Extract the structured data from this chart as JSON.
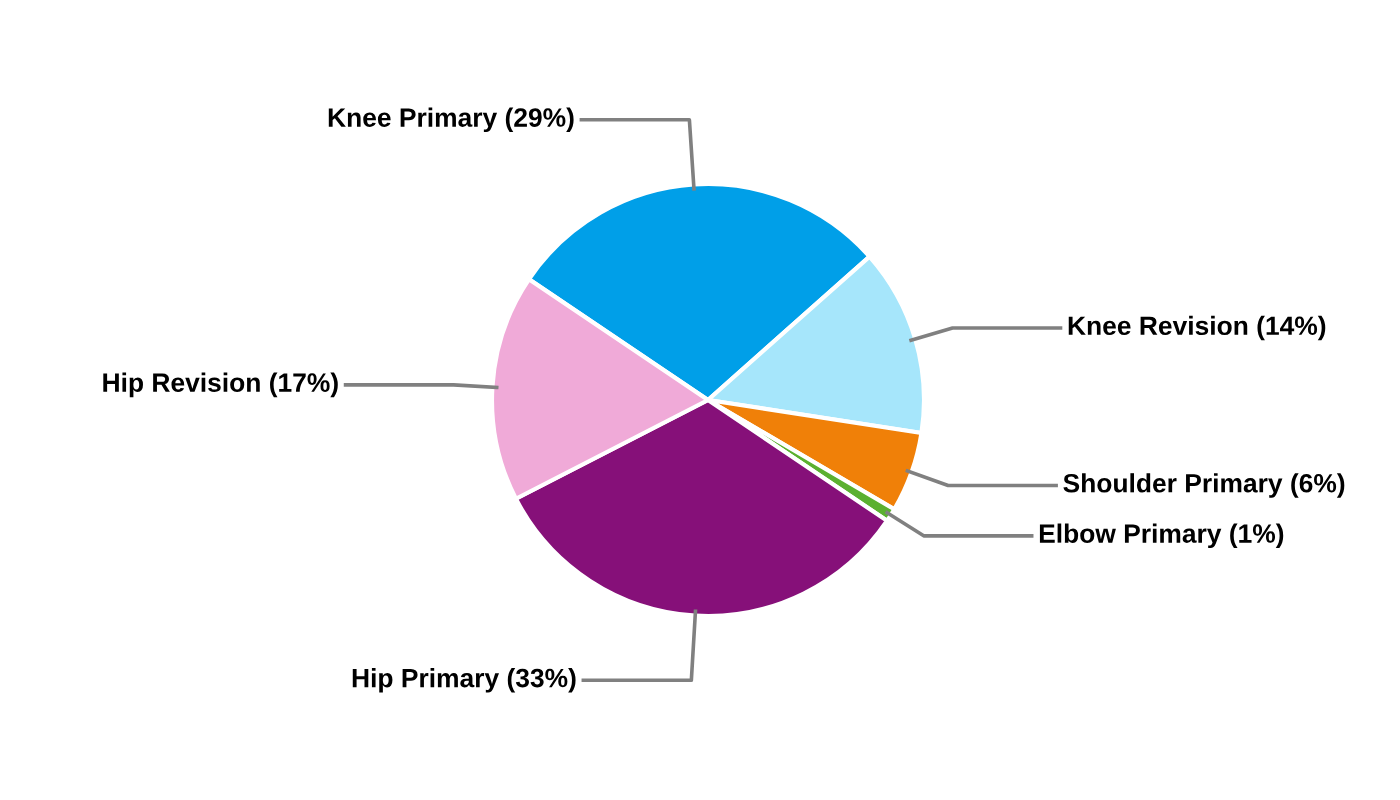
{
  "chart_data": {
    "type": "pie",
    "categories": [
      "Knee Primary (29%)",
      "Knee Revision (14%)",
      "Shoulder Primary (6%)",
      "Elbow Primary (1%)",
      "Hip Primary (33%)",
      "Hip Revision (17%)"
    ],
    "values": [
      29,
      14,
      6,
      1,
      33,
      17
    ],
    "colors": [
      "#009fe8",
      "#a6e6fb",
      "#f08008",
      "#5bb030",
      "#861079",
      "#f0aad8"
    ],
    "legend": false
  }
}
